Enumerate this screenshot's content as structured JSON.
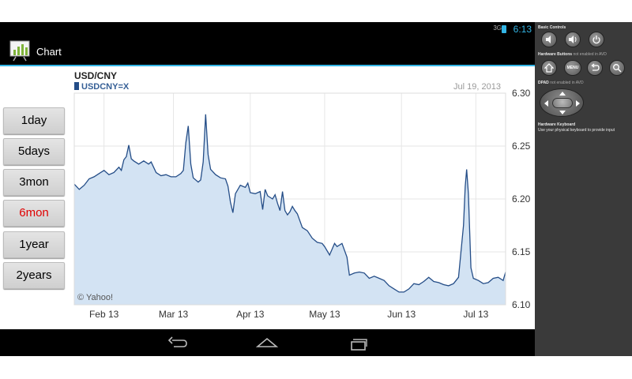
{
  "statusbar": {
    "signal": "3G",
    "time": "6:13"
  },
  "actionbar": {
    "title": "Chart",
    "icon": "bar-chart-icon"
  },
  "range_buttons": [
    {
      "label": "1day",
      "active": false
    },
    {
      "label": "5days",
      "active": false
    },
    {
      "label": "3mon",
      "active": false
    },
    {
      "label": "6mon",
      "active": true
    },
    {
      "label": "1year",
      "active": false
    },
    {
      "label": "2years",
      "active": false
    }
  ],
  "chart_data": {
    "type": "area",
    "title": "USD/CNY",
    "legend": [
      "USDCNY=X"
    ],
    "date": "Jul 19, 2013",
    "watermark": "© Yahoo!",
    "x_tick_labels": [
      "Feb 13",
      "Mar 13",
      "Apr 13",
      "May 13",
      "Jun 13",
      "Jul 13"
    ],
    "y_tick_labels": [
      "6.30",
      "6.25",
      "6.20",
      "6.15",
      "6.10"
    ],
    "ylim": [
      6.1,
      6.3
    ],
    "x_range_days": [
      0,
      174
    ],
    "x_ticks_days": [
      12,
      40,
      71,
      101,
      132,
      162
    ],
    "series": [
      {
        "name": "USDCNY=X",
        "color": "#244d87",
        "fill": "#d3e3f3",
        "points": [
          [
            0,
            6.214
          ],
          [
            2,
            6.209
          ],
          [
            4,
            6.213
          ],
          [
            6,
            6.219
          ],
          [
            8,
            6.221
          ],
          [
            10,
            6.224
          ],
          [
            12,
            6.227
          ],
          [
            14,
            6.223
          ],
          [
            16,
            6.225
          ],
          [
            18,
            6.23
          ],
          [
            19,
            6.227
          ],
          [
            20,
            6.237
          ],
          [
            21,
            6.24
          ],
          [
            22,
            6.251
          ],
          [
            23,
            6.238
          ],
          [
            24,
            6.236
          ],
          [
            26,
            6.233
          ],
          [
            28,
            6.236
          ],
          [
            30,
            6.233
          ],
          [
            31,
            6.235
          ],
          [
            33,
            6.225
          ],
          [
            35,
            6.222
          ],
          [
            37,
            6.223
          ],
          [
            39,
            6.221
          ],
          [
            41,
            6.221
          ],
          [
            43,
            6.224
          ],
          [
            44,
            6.227
          ],
          [
            45,
            6.253
          ],
          [
            46,
            6.269
          ],
          [
            47,
            6.233
          ],
          [
            48,
            6.22
          ],
          [
            50,
            6.216
          ],
          [
            51,
            6.218
          ],
          [
            52,
            6.235
          ],
          [
            53,
            6.28
          ],
          [
            54,
            6.242
          ],
          [
            55,
            6.228
          ],
          [
            57,
            6.223
          ],
          [
            59,
            6.22
          ],
          [
            61,
            6.219
          ],
          [
            62,
            6.212
          ],
          [
            63,
            6.197
          ],
          [
            64,
            6.187
          ],
          [
            65,
            6.205
          ],
          [
            67,
            6.213
          ],
          [
            69,
            6.211
          ],
          [
            70,
            6.215
          ],
          [
            71,
            6.206
          ],
          [
            73,
            6.205
          ],
          [
            75,
            6.207
          ],
          [
            76,
            6.19
          ],
          [
            77,
            6.209
          ],
          [
            78,
            6.203
          ],
          [
            80,
            6.2
          ],
          [
            81,
            6.204
          ],
          [
            82,
            6.196
          ],
          [
            83,
            6.189
          ],
          [
            84,
            6.207
          ],
          [
            85,
            6.189
          ],
          [
            86,
            6.185
          ],
          [
            87,
            6.188
          ],
          [
            88,
            6.193
          ],
          [
            89,
            6.189
          ],
          [
            90,
            6.186
          ],
          [
            92,
            6.173
          ],
          [
            94,
            6.17
          ],
          [
            96,
            6.163
          ],
          [
            98,
            6.159
          ],
          [
            100,
            6.158
          ],
          [
            101,
            6.155
          ],
          [
            103,
            6.147
          ],
          [
            105,
            6.158
          ],
          [
            106,
            6.155
          ],
          [
            108,
            6.158
          ],
          [
            110,
            6.145
          ],
          [
            111,
            6.128
          ],
          [
            113,
            6.13
          ],
          [
            115,
            6.131
          ],
          [
            117,
            6.13
          ],
          [
            119,
            6.125
          ],
          [
            121,
            6.127
          ],
          [
            123,
            6.125
          ],
          [
            125,
            6.123
          ],
          [
            127,
            6.118
          ],
          [
            129,
            6.115
          ],
          [
            131,
            6.112
          ],
          [
            133,
            6.112
          ],
          [
            135,
            6.115
          ],
          [
            137,
            6.12
          ],
          [
            139,
            6.119
          ],
          [
            141,
            6.122
          ],
          [
            143,
            6.126
          ],
          [
            145,
            6.122
          ],
          [
            147,
            6.121
          ],
          [
            149,
            6.119
          ],
          [
            151,
            6.118
          ],
          [
            153,
            6.12
          ],
          [
            155,
            6.126
          ],
          [
            156,
            6.15
          ],
          [
            157,
            6.175
          ],
          [
            157.7,
            6.212
          ],
          [
            158.3,
            6.228
          ],
          [
            159,
            6.205
          ],
          [
            160,
            6.135
          ],
          [
            161,
            6.125
          ],
          [
            163,
            6.123
          ],
          [
            165,
            6.12
          ],
          [
            167,
            6.121
          ],
          [
            169,
            6.125
          ],
          [
            171,
            6.126
          ],
          [
            173,
            6.123
          ],
          [
            174,
            6.131
          ]
        ]
      }
    ]
  },
  "panel": {
    "basic_controls": "Basic Controls",
    "hardware_buttons": "Hardware Buttons",
    "hardware_buttons_note": "not enabled in AVD",
    "dpad": "DPAD",
    "dpad_note": "not enabled in AVD",
    "hardware_keyboard": "Hardware Keyboard",
    "keyboard_note": "Use your physical keyboard to provide input",
    "menu_label": "MENU"
  }
}
